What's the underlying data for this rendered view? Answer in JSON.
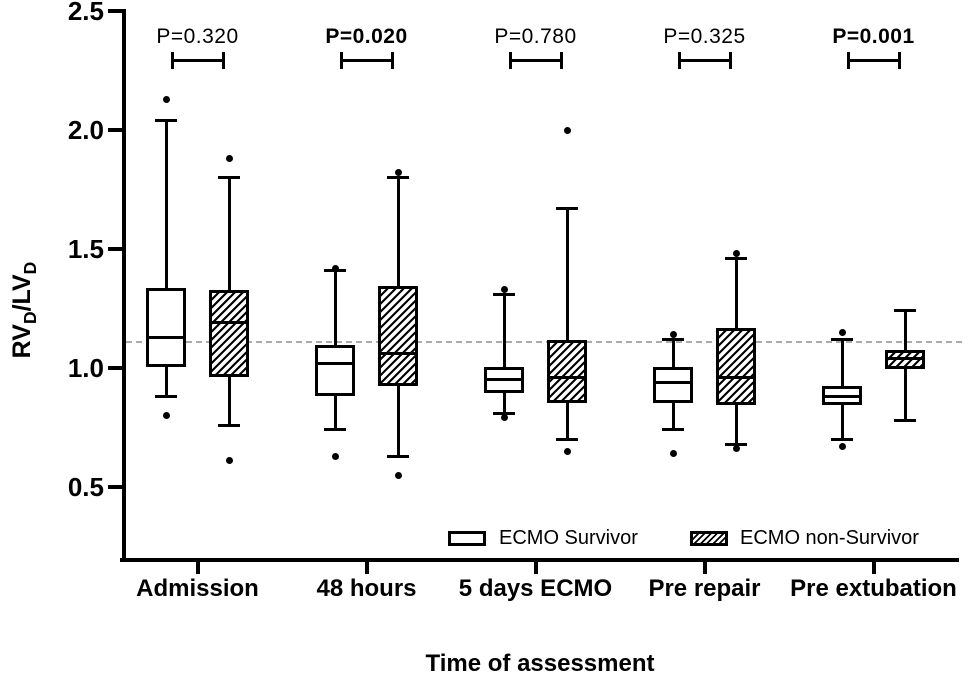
{
  "figure": {
    "x_axis_title": "Time of assessment",
    "y_axis_title_parts": {
      "main1": "RV",
      "sub1": "D",
      "main2": "/LV",
      "sub2": "D"
    }
  },
  "legend": {
    "items": [
      {
        "label": "ECMO Survivor",
        "swatch": "plain-box-icon"
      },
      {
        "label": "ECMO non-Survivor",
        "swatch": "hatched-box-icon"
      }
    ]
  },
  "colors": {
    "line": "#000000",
    "survivor_fill": "#ffffff",
    "non_survivor_fill": "hatched-black-on-white",
    "reference_line": "#ababab"
  },
  "chart_data": {
    "type": "boxplot",
    "title": "",
    "xlabel": "Time of assessment",
    "ylabel": "RVD/LVD",
    "ylim": [
      0.5,
      2.5
    ],
    "yticks": [
      {
        "value": 2.5,
        "label": "2.5"
      },
      {
        "value": 2.0,
        "label": "2.0"
      },
      {
        "value": 1.5,
        "label": "1.5"
      },
      {
        "value": 1.0,
        "label": "1.0"
      },
      {
        "value": 0.5,
        "label": "0.5"
      }
    ],
    "grid": false,
    "reference_line": 1.11,
    "legend_position": "inside-bottom-right",
    "categories": [
      "Admission",
      "48 hours",
      "5 days ECMO",
      "Pre repair",
      "Pre extubation"
    ],
    "p_values": [
      {
        "text": "P=0.320",
        "bold": false
      },
      {
        "text": "P=0.020",
        "bold": true
      },
      {
        "text": "P=0.780",
        "bold": false
      },
      {
        "text": "P=0.325",
        "bold": false
      },
      {
        "text": "P=0.001",
        "bold": true
      }
    ],
    "series": [
      {
        "name": "ECMO Survivor",
        "fill": "plain",
        "boxes": [
          {
            "whisker_low": 0.88,
            "q1": 1.01,
            "median": 1.13,
            "q3": 1.33,
            "whisker_high": 2.04,
            "outliers": [
              2.13,
              0.8
            ]
          },
          {
            "whisker_low": 0.74,
            "q1": 0.89,
            "median": 1.02,
            "q3": 1.09,
            "whisker_high": 1.41,
            "outliers": [
              1.42,
              0.63
            ]
          },
          {
            "whisker_low": 0.81,
            "q1": 0.9,
            "median": 0.95,
            "q3": 1.0,
            "whisker_high": 1.31,
            "outliers": [
              1.33,
              0.79
            ]
          },
          {
            "whisker_low": 0.74,
            "q1": 0.86,
            "median": 0.94,
            "q3": 1.0,
            "whisker_high": 1.12,
            "outliers": [
              1.14,
              0.64
            ]
          },
          {
            "whisker_low": 0.7,
            "q1": 0.85,
            "median": 0.88,
            "q3": 0.92,
            "whisker_high": 1.12,
            "outliers": [
              1.15,
              0.67
            ]
          }
        ]
      },
      {
        "name": "ECMO non-Survivor",
        "fill": "hatched",
        "boxes": [
          {
            "whisker_low": 0.76,
            "q1": 0.97,
            "median": 1.19,
            "q3": 1.32,
            "whisker_high": 1.8,
            "outliers": [
              1.88,
              0.61
            ]
          },
          {
            "whisker_low": 0.63,
            "q1": 0.93,
            "median": 1.06,
            "q3": 1.34,
            "whisker_high": 1.8,
            "outliers": [
              1.82,
              0.55
            ]
          },
          {
            "whisker_low": 0.7,
            "q1": 0.86,
            "median": 0.96,
            "q3": 1.11,
            "whisker_high": 1.67,
            "outliers": [
              2.0,
              0.65
            ]
          },
          {
            "whisker_low": 0.68,
            "q1": 0.85,
            "median": 0.96,
            "q3": 1.16,
            "whisker_high": 1.46,
            "outliers": [
              1.48,
              0.66
            ]
          },
          {
            "whisker_low": 0.78,
            "q1": 1.0,
            "median": 1.04,
            "q3": 1.07,
            "whisker_high": 1.24,
            "outliers": []
          }
        ]
      }
    ]
  }
}
